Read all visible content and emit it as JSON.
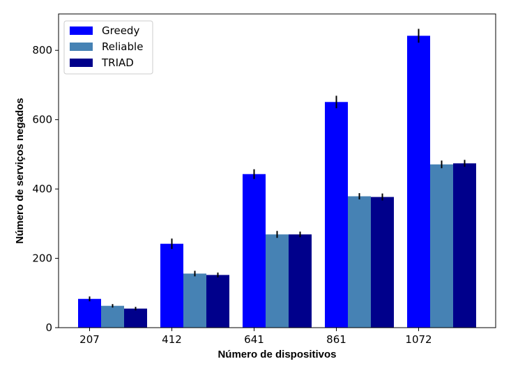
{
  "chart_data": {
    "type": "bar",
    "title": "",
    "xlabel": "Número de dispositivos",
    "ylabel": "Número de serviços negados",
    "categories": [
      "207",
      "412",
      "641",
      "861",
      "1072"
    ],
    "ylim": [
      0,
      905
    ],
    "yticks": [
      0,
      200,
      400,
      600,
      800
    ],
    "grid": false,
    "legend_position": "top-left",
    "series": [
      {
        "name": "Greedy",
        "color": "#0000ff",
        "values": [
          83,
          242,
          443,
          651,
          842
        ],
        "errors": [
          7,
          15,
          14,
          18,
          20
        ]
      },
      {
        "name": "Reliable",
        "color": "#4682b4",
        "values": [
          63,
          156,
          269,
          379,
          471
        ],
        "errors": [
          5,
          8,
          10,
          9,
          11
        ]
      },
      {
        "name": "TRIAD",
        "color": "#00008b",
        "values": [
          55,
          152,
          269,
          377,
          474
        ],
        "errors": [
          5,
          7,
          8,
          10,
          10
        ]
      }
    ]
  }
}
